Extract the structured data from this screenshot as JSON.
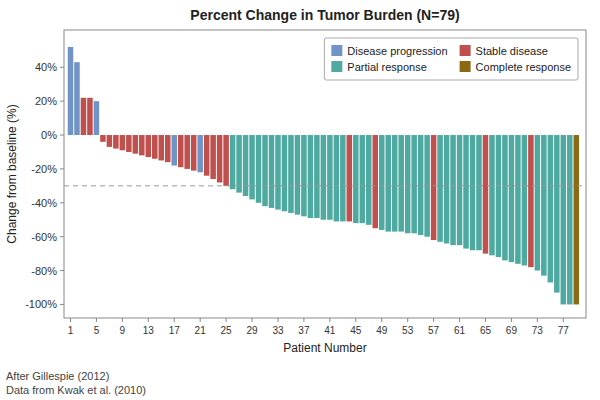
{
  "chart_data": {
    "type": "bar",
    "title": "Percent Change in Tumor Burden (N=79)",
    "x_label": "Patient Number",
    "y_label": "Change from baseline (%)",
    "annotations": [
      "After Gillespie (2012)",
      "Data from Kwak et al. (2010)"
    ],
    "reference_line": {
      "y": -30,
      "line_style": "dashed"
    },
    "xlim": [
      0,
      80.5
    ],
    "xticks": [
      1,
      5,
      9,
      13,
      17,
      21,
      25,
      29,
      33,
      37,
      41,
      45,
      49,
      53,
      57,
      61,
      65,
      69,
      73,
      77
    ],
    "ylim": [
      -108,
      62
    ],
    "yticks": [
      {
        "value": -100,
        "label": "-100%"
      },
      {
        "value": -80,
        "label": "-80%"
      },
      {
        "value": -60,
        "label": "-60%"
      },
      {
        "value": -40,
        "label": "-40%"
      },
      {
        "value": -20,
        "label": "-20%"
      },
      {
        "value": 0,
        "label": "0%"
      },
      {
        "value": 20,
        "label": "20%"
      },
      {
        "value": 40,
        "label": "40%"
      }
    ],
    "grid": false,
    "legend": "upper right",
    "series": [
      {
        "name": "Disease progression",
        "color": "#7094C8",
        "x": [
          1,
          2,
          5,
          17,
          21
        ],
        "values": [
          52,
          43,
          20,
          -18,
          -22
        ]
      },
      {
        "name": "Partial response",
        "color": "#4EA9A0",
        "x": [
          26,
          27,
          28,
          29,
          30,
          31,
          32,
          33,
          34,
          35,
          36,
          37,
          38,
          39,
          40,
          41,
          42,
          43,
          45,
          46,
          47,
          49,
          50,
          51,
          52,
          53,
          54,
          55,
          56,
          58,
          59,
          60,
          61,
          62,
          63,
          64,
          66,
          67,
          68,
          69,
          70,
          71,
          73,
          74,
          75,
          76,
          77,
          78
        ],
        "values": [
          -32,
          -34,
          -36,
          -38,
          -40,
          -42,
          -43,
          -44,
          -45,
          -46,
          -47,
          -48,
          -49,
          -49,
          -50,
          -50,
          -51,
          -51,
          -52,
          -52,
          -53,
          -56,
          -57,
          -57,
          -57,
          -58,
          -58,
          -59,
          -60,
          -63,
          -64,
          -65,
          -65,
          -67,
          -68,
          -68,
          -71,
          -72,
          -74,
          -75,
          -76,
          -77,
          -80,
          -83,
          -87,
          -93,
          -100,
          -100
        ]
      },
      {
        "name": "Stable disease",
        "color": "#C0504D",
        "x": [
          3,
          4,
          6,
          7,
          8,
          9,
          10,
          11,
          12,
          13,
          14,
          15,
          16,
          18,
          19,
          20,
          22,
          23,
          24,
          25,
          44,
          48,
          57,
          65,
          72
        ],
        "values": [
          22,
          22,
          -4,
          -7,
          -8,
          -9,
          -10,
          -11,
          -12,
          -13,
          -14,
          -15,
          -16,
          -19,
          -20,
          -21,
          -24,
          -26,
          -28,
          -30,
          -51,
          -55,
          -62,
          -70,
          -78
        ]
      },
      {
        "name": "Complete response",
        "color": "#8B6914",
        "x": [
          79
        ],
        "values": [
          -100
        ]
      }
    ]
  }
}
